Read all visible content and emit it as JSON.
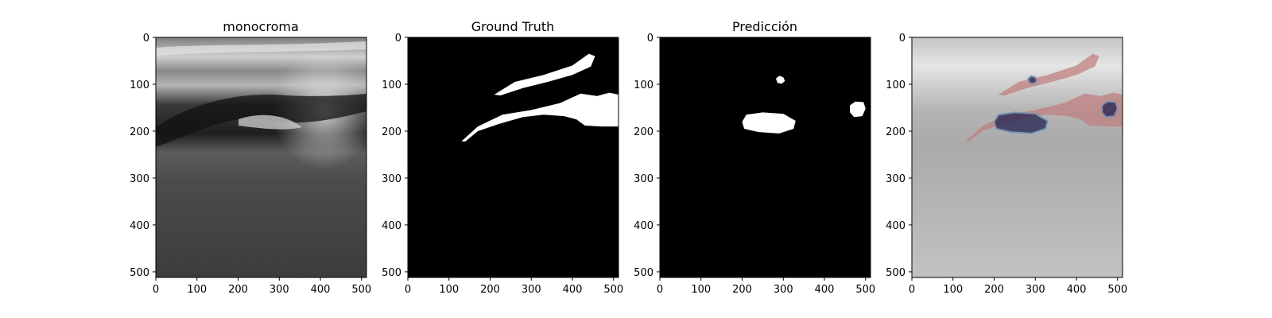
{
  "chart_data": [
    {
      "type": "image",
      "panel": "grayscale-ultrasound",
      "title": "monocroma",
      "xlim": [
        0,
        512
      ],
      "ylim": [
        512,
        0
      ],
      "x_ticks": [
        0,
        100,
        200,
        300,
        400,
        500
      ],
      "y_ticks": [
        0,
        100,
        200,
        300,
        400,
        500
      ],
      "colors": {
        "dark": "#151515",
        "mid": "#4a4a4a",
        "bright": "#d8d8d8"
      }
    },
    {
      "type": "image",
      "panel": "ground-truth-mask",
      "title": "Ground Truth",
      "xlim": [
        0,
        512
      ],
      "ylim": [
        512,
        0
      ],
      "x_ticks": [
        0,
        100,
        200,
        300,
        400,
        500
      ],
      "y_ticks": [
        0,
        100,
        200,
        300,
        400,
        500
      ],
      "colors": {
        "background": "#000000",
        "mask": "#ffffff"
      },
      "regions": [
        {
          "name": "upper-band",
          "points": [
            [
              210,
              122
            ],
            [
              260,
              95
            ],
            [
              330,
              80
            ],
            [
              400,
              60
            ],
            [
              440,
              35
            ],
            [
              455,
              40
            ],
            [
              445,
              62
            ],
            [
              400,
              80
            ],
            [
              340,
              95
            ],
            [
              280,
              108
            ],
            [
              225,
              124
            ]
          ]
        },
        {
          "name": "lower-band",
          "points": [
            [
              130,
              222
            ],
            [
              170,
              190
            ],
            [
              230,
              165
            ],
            [
              300,
              155
            ],
            [
              370,
              140
            ],
            [
              420,
              120
            ],
            [
              460,
              125
            ],
            [
              490,
              118
            ],
            [
              512,
              122
            ],
            [
              512,
              190
            ],
            [
              470,
              190
            ],
            [
              430,
              188
            ],
            [
              410,
              175
            ],
            [
              380,
              168
            ],
            [
              330,
              165
            ],
            [
              280,
              170
            ],
            [
              220,
              185
            ],
            [
              170,
              200
            ],
            [
              140,
              222
            ]
          ]
        }
      ]
    },
    {
      "type": "image",
      "panel": "prediction-mask",
      "title": "Predicción",
      "xlim": [
        0,
        512
      ],
      "ylim": [
        512,
        0
      ],
      "x_ticks": [
        0,
        100,
        200,
        300,
        400,
        500
      ],
      "y_ticks": [
        0,
        100,
        200,
        300,
        400,
        500
      ],
      "colors": {
        "background": "#000000",
        "mask": "#ffffff"
      },
      "regions": [
        {
          "name": "blob-small",
          "points": [
            [
              282,
              88
            ],
            [
              290,
              82
            ],
            [
              300,
              85
            ],
            [
              304,
              93
            ],
            [
              296,
              99
            ],
            [
              286,
              97
            ]
          ]
        },
        {
          "name": "blob-center",
          "points": [
            [
              200,
              180
            ],
            [
              210,
              165
            ],
            [
              250,
              160
            ],
            [
              300,
              163
            ],
            [
              330,
              178
            ],
            [
              325,
              195
            ],
            [
              290,
              205
            ],
            [
              240,
              202
            ],
            [
              205,
              195
            ]
          ]
        },
        {
          "name": "blob-right",
          "points": [
            [
              462,
              145
            ],
            [
              475,
              137
            ],
            [
              495,
              138
            ],
            [
              500,
              152
            ],
            [
              492,
              168
            ],
            [
              472,
              170
            ],
            [
              462,
              160
            ]
          ]
        }
      ]
    },
    {
      "type": "image",
      "panel": "overlay",
      "title": "",
      "xlim": [
        0,
        512
      ],
      "ylim": [
        512,
        0
      ],
      "x_ticks": [
        0,
        100,
        200,
        300,
        400,
        500
      ],
      "y_ticks": [
        0,
        100,
        200,
        300,
        400,
        500
      ],
      "colors": {
        "base": "#bdbdbd",
        "gt": "#c07a7a",
        "pred": "#23224f",
        "pred_edge": "#6b8fb8"
      },
      "overlay_of": [
        "ground-truth-mask",
        "prediction-mask"
      ]
    }
  ]
}
